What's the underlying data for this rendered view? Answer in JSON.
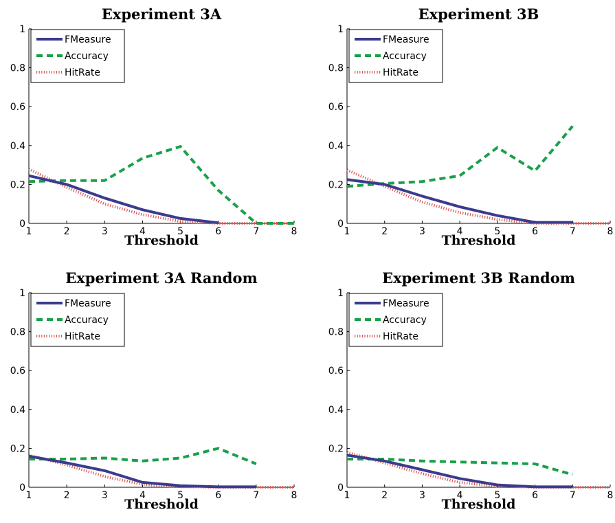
{
  "colors": {
    "fmeasure": "#3b3b8e",
    "accuracy": "#1aa04a",
    "hitrate": "#d9534f"
  },
  "chart_data": [
    {
      "type": "line",
      "title": "Experiment 3A",
      "xlabel": "Threshold",
      "ylabel": "",
      "xlim": [
        1,
        8
      ],
      "ylim": [
        0,
        1
      ],
      "xticks": [
        "1",
        "2",
        "3",
        "4",
        "5",
        "6",
        "7",
        "8"
      ],
      "yticks": [
        "0",
        "0.2",
        "0.4",
        "0.6",
        "0.8",
        "1"
      ],
      "legend_position": "top-left",
      "series": [
        {
          "name": "FMeasure",
          "style": "solid",
          "x": [
            1,
            2,
            3,
            4,
            5,
            6
          ],
          "values": [
            0.245,
            0.2,
            0.13,
            0.07,
            0.025,
            0.003
          ]
        },
        {
          "name": "Accuracy",
          "style": "dashed",
          "x": [
            1,
            2,
            3,
            4,
            5,
            6,
            7,
            8
          ],
          "values": [
            0.215,
            0.22,
            0.22,
            0.335,
            0.395,
            0.17,
            0.0,
            0.0
          ]
        },
        {
          "name": "HitRate",
          "style": "dotted",
          "x": [
            1,
            2,
            3,
            4,
            5,
            6,
            7,
            8
          ],
          "values": [
            0.28,
            0.185,
            0.1,
            0.045,
            0.01,
            0.0,
            0.0,
            0.0
          ]
        }
      ]
    },
    {
      "type": "line",
      "title": "Experiment 3B",
      "xlabel": "Threshold",
      "ylabel": "",
      "xlim": [
        1,
        8
      ],
      "ylim": [
        0,
        1
      ],
      "xticks": [
        "1",
        "2",
        "3",
        "4",
        "5",
        "6",
        "7",
        "8"
      ],
      "yticks": [
        "0",
        "0.2",
        "0.4",
        "0.6",
        "0.8",
        "1"
      ],
      "legend_position": "top-left",
      "series": [
        {
          "name": "FMeasure",
          "style": "solid",
          "x": [
            1,
            2,
            3,
            4,
            5,
            6,
            7
          ],
          "values": [
            0.225,
            0.2,
            0.14,
            0.085,
            0.04,
            0.005,
            0.005
          ]
        },
        {
          "name": "Accuracy",
          "style": "dashed",
          "x": [
            1,
            2,
            3,
            4,
            5,
            6,
            7
          ],
          "values": [
            0.19,
            0.205,
            0.215,
            0.245,
            0.39,
            0.27,
            0.5
          ]
        },
        {
          "name": "HitRate",
          "style": "dotted",
          "x": [
            1,
            2,
            3,
            4,
            5,
            6,
            7,
            8
          ],
          "values": [
            0.275,
            0.19,
            0.11,
            0.055,
            0.02,
            0.0,
            0.0,
            0.0
          ]
        }
      ]
    },
    {
      "type": "line",
      "title": "Experiment 3A Random",
      "xlabel": "Threshold",
      "ylabel": "",
      "xlim": [
        1,
        8
      ],
      "ylim": [
        0,
        1
      ],
      "xticks": [
        "1",
        "2",
        "3",
        "4",
        "5",
        "6",
        "7",
        "8"
      ],
      "yticks": [
        "0",
        "0.2",
        "0.4",
        "0.6",
        "0.8",
        "1"
      ],
      "legend_position": "top-left",
      "series": [
        {
          "name": "FMeasure",
          "style": "solid",
          "x": [
            1,
            2,
            3,
            4,
            5,
            6,
            7
          ],
          "values": [
            0.16,
            0.125,
            0.085,
            0.025,
            0.008,
            0.002,
            0.002
          ]
        },
        {
          "name": "Accuracy",
          "style": "dashed",
          "x": [
            1,
            2,
            3,
            4,
            5,
            6,
            7
          ],
          "values": [
            0.145,
            0.145,
            0.15,
            0.135,
            0.15,
            0.2,
            0.12
          ]
        },
        {
          "name": "HitRate",
          "style": "dotted",
          "x": [
            1,
            2,
            3,
            4,
            5,
            6,
            7,
            8
          ],
          "values": [
            0.165,
            0.115,
            0.055,
            0.015,
            0.003,
            0.0,
            0.0,
            0.0
          ]
        }
      ]
    },
    {
      "type": "line",
      "title": "Experiment 3B Random",
      "xlabel": "Threshold",
      "ylabel": "",
      "xlim": [
        1,
        8
      ],
      "ylim": [
        0,
        1
      ],
      "xticks": [
        "1",
        "2",
        "3",
        "4",
        "5",
        "6",
        "7",
        "8"
      ],
      "yticks": [
        "0",
        "0.2",
        "0.4",
        "0.6",
        "0.8",
        "1"
      ],
      "legend_position": "top-left",
      "series": [
        {
          "name": "FMeasure",
          "style": "solid",
          "x": [
            1,
            2,
            3,
            4,
            5,
            6,
            7
          ],
          "values": [
            0.165,
            0.135,
            0.09,
            0.045,
            0.012,
            0.002,
            0.002
          ]
        },
        {
          "name": "Accuracy",
          "style": "dashed",
          "x": [
            1,
            2,
            3,
            4,
            5,
            6,
            7
          ],
          "values": [
            0.145,
            0.145,
            0.135,
            0.13,
            0.125,
            0.12,
            0.065
          ]
        },
        {
          "name": "HitRate",
          "style": "dotted",
          "x": [
            1,
            2,
            3,
            4,
            5,
            6,
            7,
            8
          ],
          "values": [
            0.18,
            0.125,
            0.07,
            0.025,
            0.005,
            0.0,
            0.0,
            0.0
          ]
        }
      ]
    }
  ]
}
